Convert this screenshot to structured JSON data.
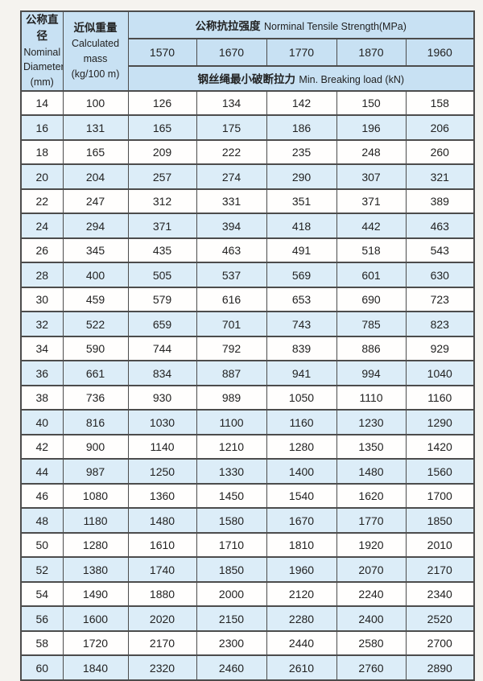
{
  "colors": {
    "page_bg": "#f5f3ef",
    "header_bg": "#c8e1f3",
    "row_alt_bg": "#dcedf8",
    "row_bg": "#fffefd",
    "border": "#4c4c4c",
    "text": "#222222"
  },
  "table": {
    "diameter_header": {
      "zh": "公称直径",
      "en1": "Nominal",
      "en2": "Diameter",
      "unit": "(mm)"
    },
    "mass_header": {
      "zh": "近似重量",
      "en1": "Calculated",
      "en2": "mass",
      "unit": "(kg/100 m)"
    },
    "tensile_header": {
      "zh": "公称抗拉强度",
      "en": "Norminal Tensile Strength(MPa)"
    },
    "breaking_header": {
      "zh": "钢丝绳最小破断拉力",
      "en": "Min. Breaking load (kN)"
    }
  },
  "chart_data": {
    "type": "table",
    "title": "公称抗拉强度 Norminal Tensile Strength(MPa)",
    "tensile_grades": [
      "1570",
      "1670",
      "1770",
      "1870",
      "1960"
    ],
    "columns": [
      "公称直径 Nominal Diameter (mm)",
      "近似重量 Calculated mass (kg/100 m)",
      "1570",
      "1670",
      "1770",
      "1870",
      "1960"
    ],
    "breaking_load_note": "钢丝绳最小破断拉力 Min. Breaking load (kN)",
    "rows": [
      [
        14,
        100,
        126,
        134,
        142,
        150,
        158
      ],
      [
        16,
        131,
        165,
        175,
        186,
        196,
        206
      ],
      [
        18,
        165,
        209,
        222,
        235,
        248,
        260
      ],
      [
        20,
        204,
        257,
        274,
        290,
        307,
        321
      ],
      [
        22,
        247,
        312,
        331,
        351,
        371,
        389
      ],
      [
        24,
        294,
        371,
        394,
        418,
        442,
        463
      ],
      [
        26,
        345,
        435,
        463,
        491,
        518,
        543
      ],
      [
        28,
        400,
        505,
        537,
        569,
        601,
        630
      ],
      [
        30,
        459,
        579,
        616,
        653,
        690,
        723
      ],
      [
        32,
        522,
        659,
        701,
        743,
        785,
        823
      ],
      [
        34,
        590,
        744,
        792,
        839,
        886,
        929
      ],
      [
        36,
        661,
        834,
        887,
        941,
        994,
        1040
      ],
      [
        38,
        736,
        930,
        989,
        1050,
        1110,
        1160
      ],
      [
        40,
        816,
        1030,
        1100,
        1160,
        1230,
        1290
      ],
      [
        42,
        900,
        1140,
        1210,
        1280,
        1350,
        1420
      ],
      [
        44,
        987,
        1250,
        1330,
        1400,
        1480,
        1560
      ],
      [
        46,
        1080,
        1360,
        1450,
        1540,
        1620,
        1700
      ],
      [
        48,
        1180,
        1480,
        1580,
        1670,
        1770,
        1850
      ],
      [
        50,
        1280,
        1610,
        1710,
        1810,
        1920,
        2010
      ],
      [
        52,
        1380,
        1740,
        1850,
        1960,
        2070,
        2170
      ],
      [
        54,
        1490,
        1880,
        2000,
        2120,
        2240,
        2340
      ],
      [
        56,
        1600,
        2020,
        2150,
        2280,
        2400,
        2520
      ],
      [
        58,
        1720,
        2170,
        2300,
        2440,
        2580,
        2700
      ],
      [
        60,
        1840,
        2320,
        2460,
        2610,
        2760,
        2890
      ]
    ]
  }
}
